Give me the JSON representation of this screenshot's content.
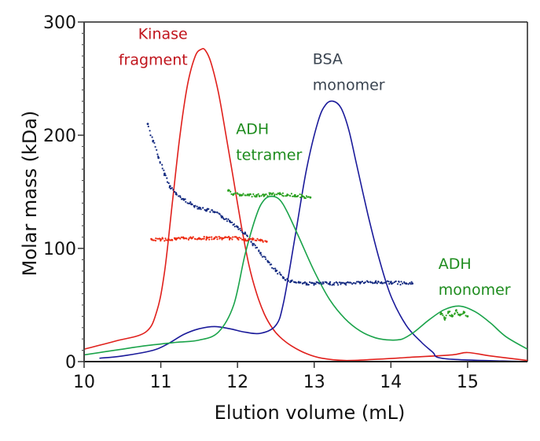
{
  "chart_data": {
    "type": "line",
    "title": "",
    "xlabel": "Elution volume (mL)",
    "ylabel": "Molar mass (kDa)",
    "xlim": [
      10,
      15.78
    ],
    "ylim": [
      0,
      300
    ],
    "x_ticks": [
      10,
      11,
      12,
      13,
      14,
      15
    ],
    "y_ticks": [
      0,
      100,
      200,
      300
    ],
    "y_minor_step": 10,
    "grid": false,
    "legend": "none",
    "colors": {
      "kinase": "#e0201c",
      "bsa": "#1a1a9a",
      "adh": "#1aa34a",
      "adh_points": "#2aa020",
      "kinase_points": "#ee2a10",
      "bsa_points": "#142a80",
      "label_kinase": "#c0141c",
      "label_bsa": "#3a4450",
      "label_adh": "#1e8c1e"
    },
    "annotations": [
      {
        "text": [
          "Kinase",
          "fragment"
        ],
        "x": 11.35,
        "y": [
          285,
          262
        ],
        "color_key": "label_kinase",
        "anchor": "end"
      },
      {
        "text": [
          "BSA",
          "monomer"
        ],
        "x": 12.98,
        "y": [
          263,
          240
        ],
        "color_key": "label_bsa",
        "anchor": "start"
      },
      {
        "text": [
          "ADH",
          "tetramer"
        ],
        "x": 11.98,
        "y": [
          201,
          178
        ],
        "color_key": "label_adh",
        "anchor": "start"
      },
      {
        "text": [
          "ADH",
          "monomer"
        ],
        "x": 14.62,
        "y": [
          82,
          59
        ],
        "color_key": "label_adh",
        "anchor": "start"
      }
    ],
    "series": [
      {
        "name": "Kinase fragment UV trace",
        "kind": "line",
        "color_key": "kinase",
        "x": [
          10.0,
          10.4,
          10.8,
          10.95,
          11.05,
          11.15,
          11.25,
          11.35,
          11.45,
          11.53,
          11.58,
          11.65,
          11.75,
          11.85,
          11.95,
          12.05,
          12.15,
          12.25,
          12.35,
          12.45,
          12.55,
          12.7,
          12.9,
          13.1,
          13.4,
          13.8,
          14.3,
          14.8,
          15.0,
          15.3,
          15.78
        ],
        "y": [
          11,
          18,
          26,
          45,
          80,
          140,
          200,
          245,
          270,
          276,
          275,
          265,
          238,
          200,
          160,
          120,
          85,
          60,
          42,
          30,
          22,
          14,
          7,
          3,
          1,
          2,
          4,
          6,
          8,
          5,
          1
        ]
      },
      {
        "name": "BSA UV trace",
        "kind": "line",
        "color_key": "bsa",
        "x": [
          10.2,
          10.5,
          10.9,
          11.1,
          11.3,
          11.5,
          11.7,
          11.9,
          12.1,
          12.3,
          12.5,
          12.6,
          12.75,
          12.9,
          13.05,
          13.15,
          13.25,
          13.35,
          13.45,
          13.55,
          13.7,
          13.85,
          14.0,
          14.2,
          14.4,
          14.55,
          14.6,
          14.8,
          15.2,
          15.78
        ],
        "y": [
          3,
          5,
          10,
          16,
          24,
          29,
          31,
          29,
          26,
          25,
          32,
          52,
          110,
          170,
          212,
          227,
          230,
          224,
          205,
          175,
          130,
          90,
          58,
          32,
          17,
          8,
          4,
          2,
          1,
          0
        ]
      },
      {
        "name": "ADH UV trace",
        "kind": "line",
        "color_key": "adh",
        "x": [
          10.0,
          10.4,
          10.8,
          11.2,
          11.5,
          11.75,
          11.95,
          12.1,
          12.25,
          12.35,
          12.45,
          12.55,
          12.65,
          12.8,
          13.0,
          13.2,
          13.4,
          13.6,
          13.8,
          14.0,
          14.15,
          14.3,
          14.5,
          14.7,
          14.9,
          15.1,
          15.3,
          15.5,
          15.78
        ],
        "y": [
          6,
          10,
          14,
          17,
          19,
          26,
          50,
          95,
          130,
          143,
          146,
          143,
          132,
          110,
          80,
          55,
          38,
          27,
          21,
          19,
          20,
          26,
          37,
          46,
          49,
          44,
          34,
          22,
          11
        ]
      },
      {
        "name": "BSA molar mass (points)",
        "kind": "scatter",
        "color_key": "bsa_points",
        "x": [
          10.83,
          10.9,
          10.97,
          11.05,
          11.12,
          11.2,
          11.3,
          11.4,
          11.5,
          11.6,
          11.7,
          11.8,
          11.9,
          12.0,
          12.1,
          12.2,
          12.3,
          12.4,
          12.5,
          12.6,
          12.7,
          12.8,
          12.9,
          13.0,
          13.2,
          13.4,
          13.6,
          13.8,
          14.0,
          14.2,
          14.28
        ],
        "y": [
          210,
          195,
          180,
          166,
          155,
          148,
          143,
          139,
          136,
          134,
          132,
          128,
          124,
          119,
          113,
          104,
          96,
          88,
          80,
          74,
          71,
          70,
          69,
          69,
          69,
          69,
          70,
          70,
          70,
          69,
          69
        ]
      },
      {
        "name": "Kinase fragment molar mass (points)",
        "kind": "scatter",
        "color_key": "kinase_points",
        "x": [
          10.88,
          11.0,
          11.1,
          11.2,
          11.3,
          11.4,
          11.5,
          11.6,
          11.7,
          11.8,
          11.9,
          12.0,
          12.1,
          12.2,
          12.3,
          12.38
        ],
        "y": [
          108,
          108,
          108,
          108,
          109,
          109,
          109,
          109,
          109,
          109,
          109,
          109,
          108,
          108,
          107,
          106
        ]
      },
      {
        "name": "ADH tetramer molar mass (points)",
        "kind": "scatter",
        "color_key": "adh_points",
        "x": [
          11.88,
          11.95,
          12.05,
          12.15,
          12.25,
          12.35,
          12.45,
          12.55,
          12.65,
          12.75,
          12.85,
          12.95
        ],
        "y": [
          151,
          148,
          147,
          147,
          147,
          147,
          148,
          148,
          147,
          147,
          146,
          145
        ]
      },
      {
        "name": "ADH monomer molar mass (points)",
        "kind": "scatter",
        "color_key": "adh_points",
        "x": [
          14.65,
          14.7,
          14.75,
          14.8,
          14.85,
          14.9,
          14.95,
          15.0
        ],
        "y": [
          42,
          38,
          44,
          40,
          45,
          41,
          43,
          40
        ]
      }
    ]
  }
}
